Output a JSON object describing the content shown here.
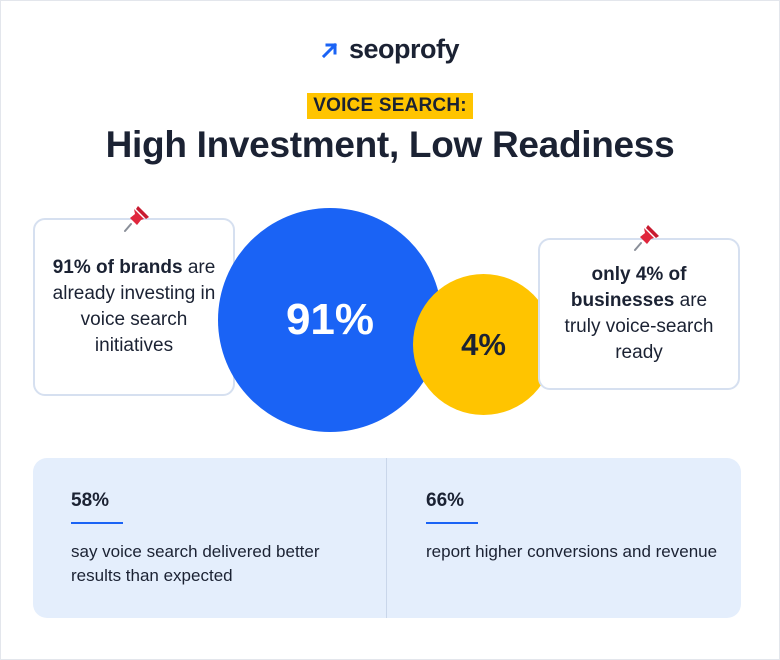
{
  "brand": {
    "name": "seoprofy",
    "icon": "arrow-up-right-icon",
    "accent": "#1a63f5"
  },
  "header": {
    "eyebrow": "VOICE SEARCH:",
    "title": "High Investment, Low Readiness"
  },
  "left_card": {
    "highlight": "91% of brands",
    "text": "are already investing in voice search initiatives",
    "icon": "pushpin-icon"
  },
  "right_card": {
    "highlight": "only 4% of businesses",
    "text": "are truly voice-search ready",
    "icon": "pushpin-icon"
  },
  "circles": {
    "big": {
      "label": "91%",
      "value": 91,
      "color": "#1a63f5"
    },
    "small": {
      "label": "4%",
      "value": 4,
      "color": "#ffc400"
    }
  },
  "stats": [
    {
      "value": "58%",
      "text": "say voice search delivered better results than expected"
    },
    {
      "value": "66%",
      "text": "report higher conversions and revenue"
    }
  ]
}
